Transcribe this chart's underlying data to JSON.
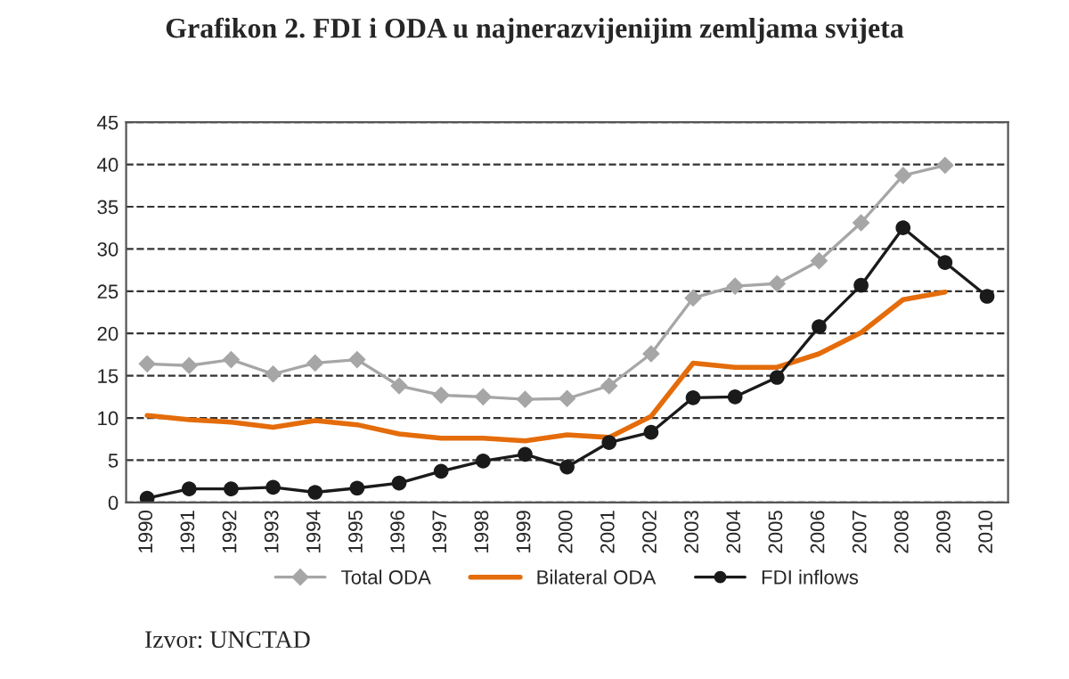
{
  "chart_data": {
    "type": "line",
    "title": "Grafikon 2. FDI i ODA u najnerazvijenijim zemljama svijeta",
    "categories": [
      "1990",
      "1991",
      "1992",
      "1993",
      "1994",
      "1995",
      "1996",
      "1997",
      "1998",
      "1999",
      "2000",
      "2001",
      "2002",
      "2003",
      "2004",
      "2005",
      "2006",
      "2007",
      "2008",
      "2009",
      "2010"
    ],
    "series": [
      {
        "name": "Total ODA",
        "color": "#a6a6a6",
        "marker": "diamond",
        "values": [
          16.4,
          16.2,
          16.9,
          15.2,
          16.5,
          16.9,
          13.8,
          12.7,
          12.5,
          12.2,
          12.3,
          13.8,
          17.6,
          24.2,
          25.6,
          25.9,
          28.6,
          33.1,
          38.7,
          39.9,
          null
        ]
      },
      {
        "name": "Bilateral ODA",
        "color": "#e46c0a",
        "marker": "none",
        "values": [
          10.3,
          9.8,
          9.5,
          8.9,
          9.7,
          9.2,
          8.1,
          7.6,
          7.6,
          7.3,
          8.0,
          7.7,
          10.2,
          16.5,
          16.0,
          16.0,
          17.6,
          20.1,
          24.0,
          24.9,
          null
        ]
      },
      {
        "name": "FDI inflows",
        "color": "#1a1a1a",
        "marker": "circle",
        "values": [
          0.5,
          1.6,
          1.6,
          1.8,
          1.2,
          1.7,
          2.3,
          3.7,
          4.9,
          5.7,
          4.2,
          7.1,
          8.3,
          12.4,
          12.5,
          14.8,
          20.8,
          25.7,
          32.5,
          28.4,
          24.4
        ]
      }
    ],
    "ylim": [
      0,
      45
    ],
    "yticks": [
      0,
      5,
      10,
      15,
      20,
      25,
      30,
      35,
      40,
      45
    ],
    "grid": "y",
    "legend": "bottom",
    "annotations": [
      "Izvor: UNCTAD"
    ]
  }
}
